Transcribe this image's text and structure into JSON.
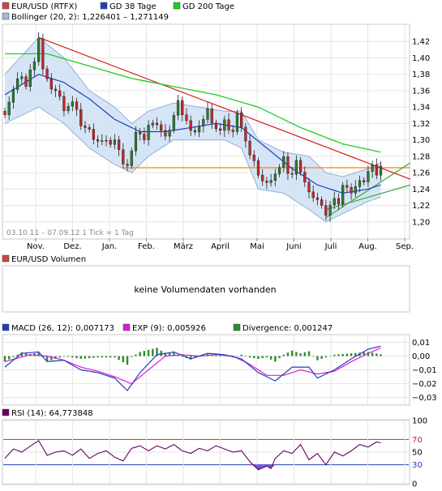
{
  "colors": {
    "candle_up": "#2e7d32",
    "candle_down": "#c62828",
    "gd38": "#1f3fbf",
    "gd200": "#22cc22",
    "bollinger_fill": "#cfe0f3",
    "bollinger_line": "#8fb0d8",
    "trend_red": "#d62020",
    "support_orange": "#ff8000",
    "macd": "#1f3fbf",
    "exp": "#e01ad6",
    "divergence": "#2e8b2e",
    "rsi": "#660066",
    "rsi_high": "#d62020",
    "rsi_low": "#1f3fbf",
    "grid": "#e6e6e6"
  },
  "chart_data": [
    {
      "type": "candlestick",
      "legend": [
        {
          "label": "EUR/USD (RTFX)",
          "color": "#cc4444"
        },
        {
          "label": "GD 38 Tage",
          "color": "#1f3fbf"
        },
        {
          "label": "GD 200 Tage",
          "color": "#22cc22"
        },
        {
          "label": "Bollinger (20, 2): 1,226401  – 1,271149",
          "color": "#9fb8dc"
        }
      ],
      "period_label": "03.10.11 – 07.09.12   1 Tick = 1 Tag",
      "months": [
        "Nov.",
        "Dez.",
        "Jan.",
        "Feb.",
        "März",
        "April",
        "Mai",
        "Juni",
        "Juli",
        "Aug.",
        "Sep."
      ],
      "ylim": [
        1.18,
        1.44
      ],
      "yticks": [
        "1,42",
        "1,40",
        "1,38",
        "1,36",
        "1,34",
        "1,32",
        "1,30",
        "1,28",
        "1,26",
        "1,24",
        "1,22",
        "1,20"
      ],
      "close_keypoints": [
        [
          0,
          1.335
        ],
        [
          2,
          1.36
        ],
        [
          4,
          1.38
        ],
        [
          5,
          1.365
        ],
        [
          7,
          1.4
        ],
        [
          8,
          1.425
        ],
        [
          9,
          1.385
        ],
        [
          10,
          1.37
        ],
        [
          12,
          1.36
        ],
        [
          14,
          1.34
        ],
        [
          16,
          1.345
        ],
        [
          18,
          1.32
        ],
        [
          20,
          1.31
        ],
        [
          22,
          1.3
        ],
        [
          24,
          1.295
        ],
        [
          26,
          1.3
        ],
        [
          27,
          1.285
        ],
        [
          28,
          1.275
        ],
        [
          29,
          1.27
        ],
        [
          30,
          1.285
        ],
        [
          31,
          1.305
        ],
        [
          32,
          1.31
        ],
        [
          33,
          1.3
        ],
        [
          34,
          1.315
        ],
        [
          35,
          1.325
        ],
        [
          36,
          1.32
        ],
        [
          37,
          1.31
        ],
        [
          38,
          1.3
        ],
        [
          39,
          1.315
        ],
        [
          40,
          1.33
        ],
        [
          41,
          1.345
        ],
        [
          42,
          1.335
        ],
        [
          43,
          1.325
        ],
        [
          44,
          1.31
        ],
        [
          45,
          1.305
        ],
        [
          46,
          1.32
        ],
        [
          47,
          1.325
        ],
        [
          48,
          1.335
        ],
        [
          49,
          1.325
        ],
        [
          50,
          1.315
        ],
        [
          51,
          1.31
        ],
        [
          52,
          1.32
        ],
        [
          53,
          1.315
        ],
        [
          54,
          1.31
        ],
        [
          55,
          1.33
        ],
        [
          56,
          1.32
        ],
        [
          57,
          1.3
        ],
        [
          58,
          1.28
        ],
        [
          59,
          1.27
        ],
        [
          60,
          1.26
        ],
        [
          61,
          1.25
        ],
        [
          62,
          1.245
        ],
        [
          63,
          1.255
        ],
        [
          64,
          1.26
        ],
        [
          65,
          1.265
        ],
        [
          66,
          1.275
        ],
        [
          67,
          1.262
        ],
        [
          68,
          1.258
        ],
        [
          69,
          1.272
        ],
        [
          70,
          1.265
        ],
        [
          71,
          1.25
        ],
        [
          72,
          1.235
        ],
        [
          73,
          1.225
        ],
        [
          74,
          1.23
        ],
        [
          75,
          1.22
        ],
        [
          76,
          1.205
        ],
        [
          77,
          1.225
        ],
        [
          78,
          1.23
        ],
        [
          79,
          1.22
        ],
        [
          80,
          1.24
        ],
        [
          81,
          1.245
        ],
        [
          82,
          1.235
        ],
        [
          83,
          1.24
        ],
        [
          84,
          1.255
        ],
        [
          85,
          1.25
        ],
        [
          86,
          1.26
        ],
        [
          87,
          1.265
        ],
        [
          88,
          1.26
        ],
        [
          89,
          1.268
        ]
      ],
      "gd38_keypoints": [
        [
          0,
          1.355
        ],
        [
          8,
          1.38
        ],
        [
          14,
          1.37
        ],
        [
          20,
          1.35
        ],
        [
          26,
          1.325
        ],
        [
          32,
          1.31
        ],
        [
          38,
          1.31
        ],
        [
          44,
          1.315
        ],
        [
          50,
          1.32
        ],
        [
          56,
          1.315
        ],
        [
          62,
          1.29
        ],
        [
          68,
          1.265
        ],
        [
          74,
          1.245
        ],
        [
          80,
          1.235
        ],
        [
          86,
          1.24
        ],
        [
          89,
          1.245
        ]
      ],
      "gd200_keypoints": [
        [
          0,
          1.405
        ],
        [
          10,
          1.405
        ],
        [
          20,
          1.39
        ],
        [
          30,
          1.375
        ],
        [
          40,
          1.365
        ],
        [
          50,
          1.355
        ],
        [
          60,
          1.34
        ],
        [
          70,
          1.315
        ],
        [
          80,
          1.295
        ],
        [
          89,
          1.285
        ]
      ],
      "bollinger_upper_keypoints": [
        [
          0,
          1.38
        ],
        [
          8,
          1.425
        ],
        [
          14,
          1.4
        ],
        [
          20,
          1.36
        ],
        [
          26,
          1.34
        ],
        [
          30,
          1.32
        ],
        [
          34,
          1.335
        ],
        [
          40,
          1.345
        ],
        [
          46,
          1.34
        ],
        [
          52,
          1.335
        ],
        [
          56,
          1.335
        ],
        [
          60,
          1.3
        ],
        [
          66,
          1.285
        ],
        [
          72,
          1.28
        ],
        [
          76,
          1.26
        ],
        [
          80,
          1.255
        ],
        [
          86,
          1.265
        ],
        [
          89,
          1.272
        ]
      ],
      "bollinger_lower_keypoints": [
        [
          0,
          1.32
        ],
        [
          8,
          1.34
        ],
        [
          14,
          1.32
        ],
        [
          20,
          1.29
        ],
        [
          26,
          1.27
        ],
        [
          30,
          1.26
        ],
        [
          34,
          1.28
        ],
        [
          40,
          1.3
        ],
        [
          46,
          1.3
        ],
        [
          52,
          1.3
        ],
        [
          56,
          1.29
        ],
        [
          60,
          1.24
        ],
        [
          66,
          1.235
        ],
        [
          72,
          1.215
        ],
        [
          76,
          1.2
        ],
        [
          80,
          1.21
        ],
        [
          86,
          1.225
        ],
        [
          89,
          1.23
        ]
      ],
      "trend_red": [
        [
          8,
          1.425
        ],
        [
          96,
          1.252
        ]
      ],
      "support_orange": {
        "from": 28,
        "to": 96,
        "y": 1.266
      },
      "triangle_lines": [
        {
          "from": [
            76,
            1.205
          ],
          "to": [
            96,
            1.272
          ]
        },
        {
          "from": [
            76,
            1.215
          ],
          "to": [
            96,
            1.245
          ]
        }
      ]
    },
    {
      "type": "empty",
      "legend": [
        {
          "label": "EUR/USD Volumen",
          "color": "#cc4444"
        }
      ],
      "message": "keine Volumendaten vorhanden"
    },
    {
      "type": "line",
      "legend": [
        {
          "label": "MACD (26, 12): 0,007173",
          "color": "#1f3fbf"
        },
        {
          "label": "EXP (9): 0,005926",
          "color": "#e01ad6"
        },
        {
          "label": "Divergence: 0,001247",
          "color": "#2e8b2e"
        }
      ],
      "ylim": [
        -0.035,
        0.015
      ],
      "yticks": [
        "0,01",
        "0,00",
        "−0,01",
        "−0,02",
        "−0,03"
      ],
      "macd_keypoints": [
        [
          0,
          -0.008
        ],
        [
          4,
          0.002
        ],
        [
          8,
          0.003
        ],
        [
          10,
          -0.004
        ],
        [
          14,
          -0.003
        ],
        [
          18,
          -0.01
        ],
        [
          22,
          -0.012
        ],
        [
          26,
          -0.016
        ],
        [
          29,
          -0.025
        ],
        [
          32,
          -0.012
        ],
        [
          36,
          0.001
        ],
        [
          40,
          0.003
        ],
        [
          44,
          -0.002
        ],
        [
          48,
          0.002
        ],
        [
          52,
          0.001
        ],
        [
          56,
          -0.002
        ],
        [
          60,
          -0.012
        ],
        [
          64,
          -0.018
        ],
        [
          68,
          -0.008
        ],
        [
          72,
          -0.008
        ],
        [
          74,
          -0.016
        ],
        [
          78,
          -0.01
        ],
        [
          82,
          -0.002
        ],
        [
          86,
          0.005
        ],
        [
          89,
          0.0072
        ]
      ],
      "exp_keypoints": [
        [
          0,
          -0.004
        ],
        [
          6,
          0.001
        ],
        [
          10,
          0.0
        ],
        [
          14,
          -0.003
        ],
        [
          18,
          -0.008
        ],
        [
          22,
          -0.011
        ],
        [
          26,
          -0.015
        ],
        [
          30,
          -0.02
        ],
        [
          34,
          -0.01
        ],
        [
          38,
          0.0
        ],
        [
          42,
          0.001
        ],
        [
          46,
          0.0
        ],
        [
          50,
          0.001
        ],
        [
          54,
          0.0
        ],
        [
          58,
          -0.006
        ],
        [
          62,
          -0.014
        ],
        [
          66,
          -0.014
        ],
        [
          70,
          -0.01
        ],
        [
          74,
          -0.013
        ],
        [
          78,
          -0.011
        ],
        [
          82,
          -0.004
        ],
        [
          86,
          0.002
        ],
        [
          89,
          0.0059
        ]
      ]
    },
    {
      "type": "line",
      "legend": [
        {
          "label": "RSI (14): 64,773848",
          "color": "#660066"
        }
      ],
      "ylim": [
        0,
        100
      ],
      "yticks": [
        "100",
        "70",
        "50",
        "30",
        "0"
      ],
      "levels": {
        "high": 70,
        "low": 30
      },
      "rsi_keypoints": [
        [
          0,
          40
        ],
        [
          2,
          55
        ],
        [
          4,
          50
        ],
        [
          7,
          64
        ],
        [
          8,
          68
        ],
        [
          10,
          45
        ],
        [
          12,
          50
        ],
        [
          14,
          52
        ],
        [
          16,
          45
        ],
        [
          18,
          55
        ],
        [
          20,
          40
        ],
        [
          22,
          48
        ],
        [
          24,
          52
        ],
        [
          26,
          42
        ],
        [
          28,
          36
        ],
        [
          30,
          56
        ],
        [
          32,
          60
        ],
        [
          34,
          52
        ],
        [
          36,
          60
        ],
        [
          38,
          55
        ],
        [
          40,
          62
        ],
        [
          42,
          52
        ],
        [
          44,
          48
        ],
        [
          46,
          56
        ],
        [
          48,
          52
        ],
        [
          50,
          60
        ],
        [
          52,
          55
        ],
        [
          54,
          50
        ],
        [
          56,
          52
        ],
        [
          58,
          35
        ],
        [
          60,
          22
        ],
        [
          62,
          28
        ],
        [
          63,
          24
        ],
        [
          64,
          40
        ],
        [
          66,
          52
        ],
        [
          68,
          48
        ],
        [
          70,
          62
        ],
        [
          72,
          38
        ],
        [
          74,
          48
        ],
        [
          76,
          30
        ],
        [
          78,
          50
        ],
        [
          80,
          44
        ],
        [
          82,
          52
        ],
        [
          84,
          62
        ],
        [
          86,
          58
        ],
        [
          88,
          66
        ],
        [
          89,
          64.8
        ]
      ]
    }
  ]
}
